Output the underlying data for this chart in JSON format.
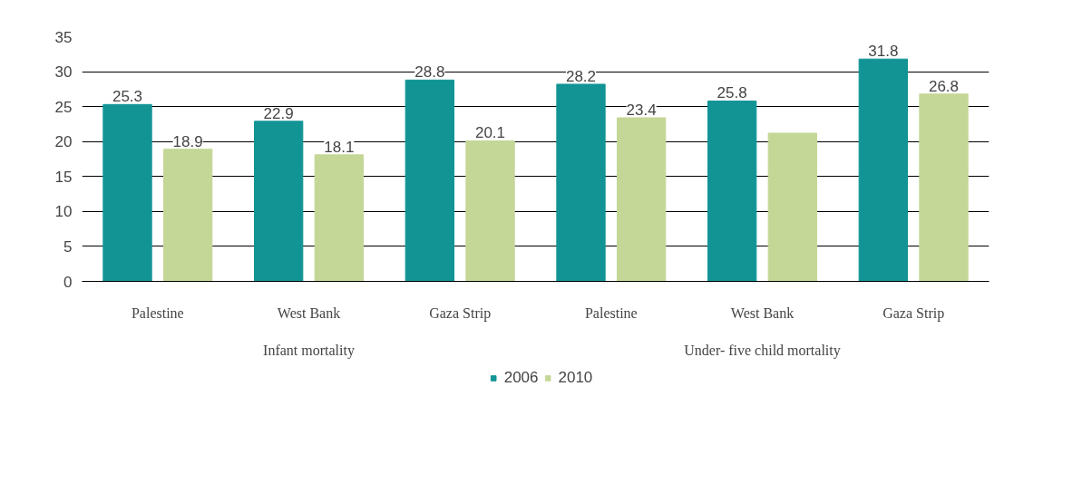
{
  "chart_data": {
    "type": "bar",
    "categories": [
      "Palestine",
      "West Bank",
      "Gaza Strip",
      "Palestine",
      "West Bank",
      "Gaza Strip"
    ],
    "annotations": [
      "Infant mortality",
      "Under- five child mortality"
    ],
    "series": [
      {
        "name": "2006",
        "color": "#129494",
        "values": [
          25.3,
          22.9,
          28.8,
          28.2,
          25.8,
          31.8
        ],
        "value_labels": [
          "25.3",
          "22.9",
          "28.8",
          "28.2",
          "25.8",
          "31.8"
        ]
      },
      {
        "name": "2010",
        "color": "#c4d797",
        "values": [
          18.9,
          18.1,
          20.1,
          23.4,
          21.2,
          26.8
        ],
        "value_labels": [
          "18.9",
          "18.1",
          "20.1",
          "23.4",
          null,
          "26.8"
        ]
      }
    ],
    "ylim": [
      0,
      35
    ],
    "yticks": [
      0,
      5,
      10,
      15,
      20,
      25,
      30,
      35
    ],
    "grid": "y",
    "legend": "bottom"
  }
}
